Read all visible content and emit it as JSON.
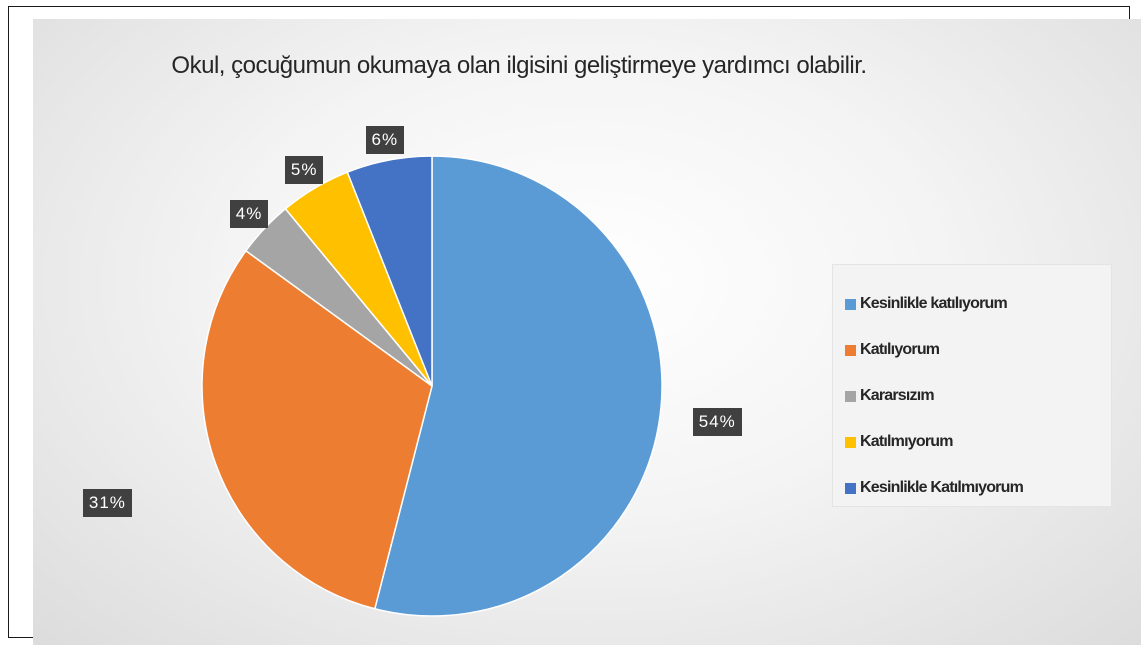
{
  "chart_data": {
    "type": "pie",
    "title": "Okul, çocuğumun okumaya olan ilgisini geliştirmeye yardımcı olabilir.",
    "categories": [
      "Kesinlikle katılıyorum",
      "Katılıyorum",
      "Kararsızım",
      "Katılmıyorum",
      "Kesinlikle Katılmıyorum"
    ],
    "values": [
      54,
      31,
      4,
      5,
      6
    ],
    "data_labels": [
      "54%",
      "31%",
      "4%",
      "5%",
      "6%"
    ],
    "colors": [
      "#5b9bd5",
      "#ed7d31",
      "#a5a5a5",
      "#ffc000",
      "#4472c4"
    ],
    "legend_position": "right"
  }
}
